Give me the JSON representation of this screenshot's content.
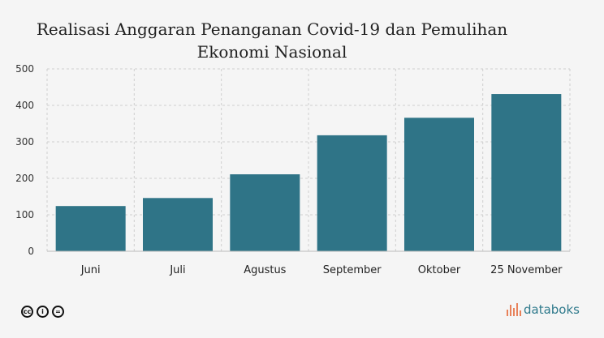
{
  "chart_data": {
    "type": "bar",
    "title_lines": [
      "Realisasi Anggaran Penanganan Covid-19 dan Pemulihan",
      "Ekonomi Nasional"
    ],
    "categories": [
      "Juni",
      "Juli",
      "Agustus",
      "September",
      "Oktober",
      "25 November"
    ],
    "values": [
      124,
      146,
      211,
      318,
      366,
      431
    ],
    "ylim": [
      0,
      500
    ],
    "yticks": [
      "0",
      "100",
      "200",
      "300",
      "400",
      "500"
    ],
    "bar_color": "#2f7487",
    "grid": true
  },
  "footer": {
    "license_icons": [
      "cc-icon",
      "by-icon",
      "nd-icon"
    ],
    "license_glyphs": [
      "cc",
      "i",
      "="
    ],
    "brand": "databoks",
    "brand_color": "#2f7a8c",
    "brand_mark_color": "#e8825a"
  }
}
